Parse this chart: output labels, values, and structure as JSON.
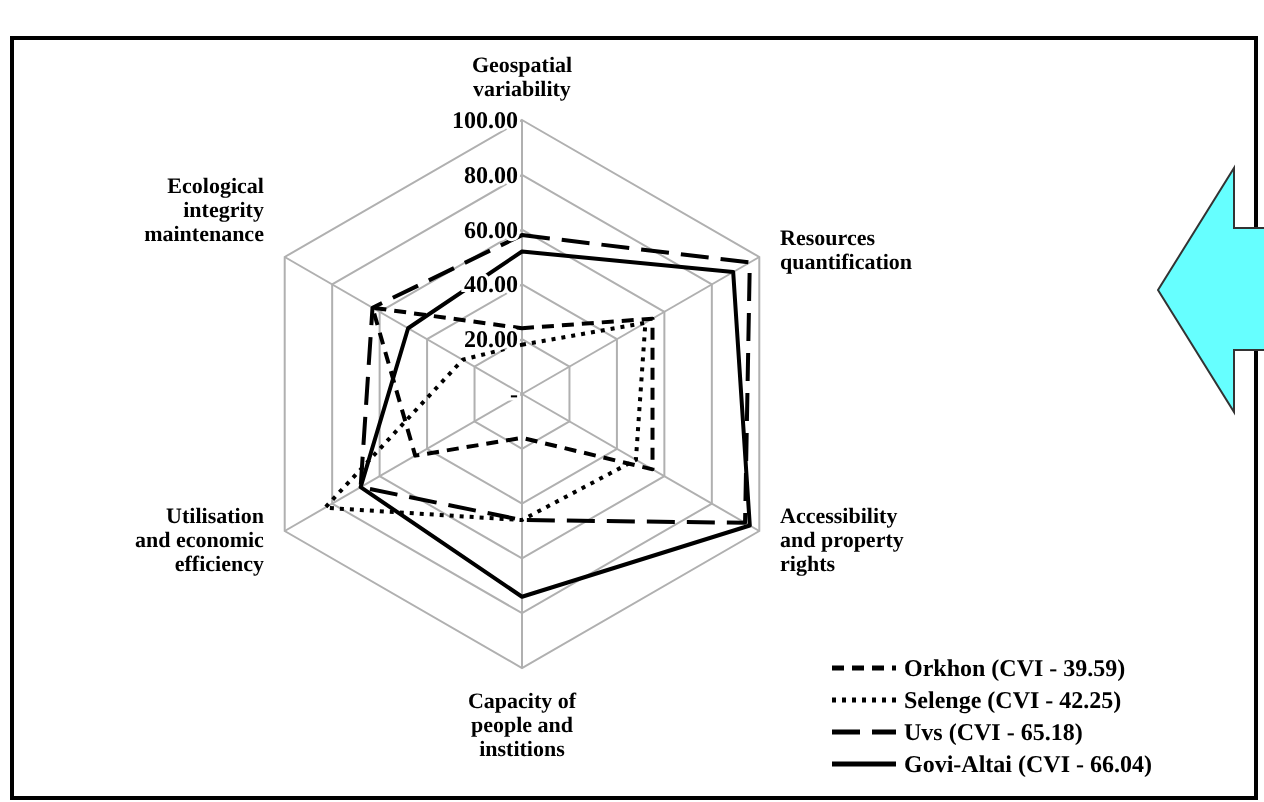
{
  "chart_data": {
    "type": "radar",
    "categories": [
      "Geospatial variability",
      "Resources quantification",
      "Accessibility and property rights",
      "Capacity of people and institions",
      "Utilisation and economic efficiency",
      "Ecological integrity maintenance"
    ],
    "series": [
      {
        "name": "Orkhon (CVI - 39.59)",
        "color": "#000000",
        "line_style": "dashed",
        "values": [
          24,
          55,
          55,
          16,
          45,
          63
        ]
      },
      {
        "name": "Selenge (CVI - 42.25)",
        "color": "#000000",
        "line_style": "dotted",
        "values": [
          18,
          52,
          48,
          46,
          83,
          25
        ]
      },
      {
        "name": "Uvs (CVI - 65.18)",
        "color": "#000000",
        "line_style": "dashed",
        "values": [
          58,
          96,
          94,
          46,
          68,
          63
        ]
      },
      {
        "name": "Govi-Altai (CVI - 66.04)",
        "color": "#000000",
        "line_style": "solid",
        "values": [
          52,
          89,
          96,
          74,
          68,
          48
        ]
      }
    ],
    "ylim": [
      0,
      100
    ],
    "yticks": [
      {
        "value": 0,
        "label": "-"
      },
      {
        "value": 20,
        "label": "20.00"
      },
      {
        "value": 40,
        "label": "40.00"
      },
      {
        "value": 60,
        "label": "60.00"
      },
      {
        "value": 80,
        "label": "80.00"
      },
      {
        "value": 100,
        "label": "100.00"
      }
    ],
    "grid": true,
    "legend": "bottom right",
    "marker": "none"
  }
}
